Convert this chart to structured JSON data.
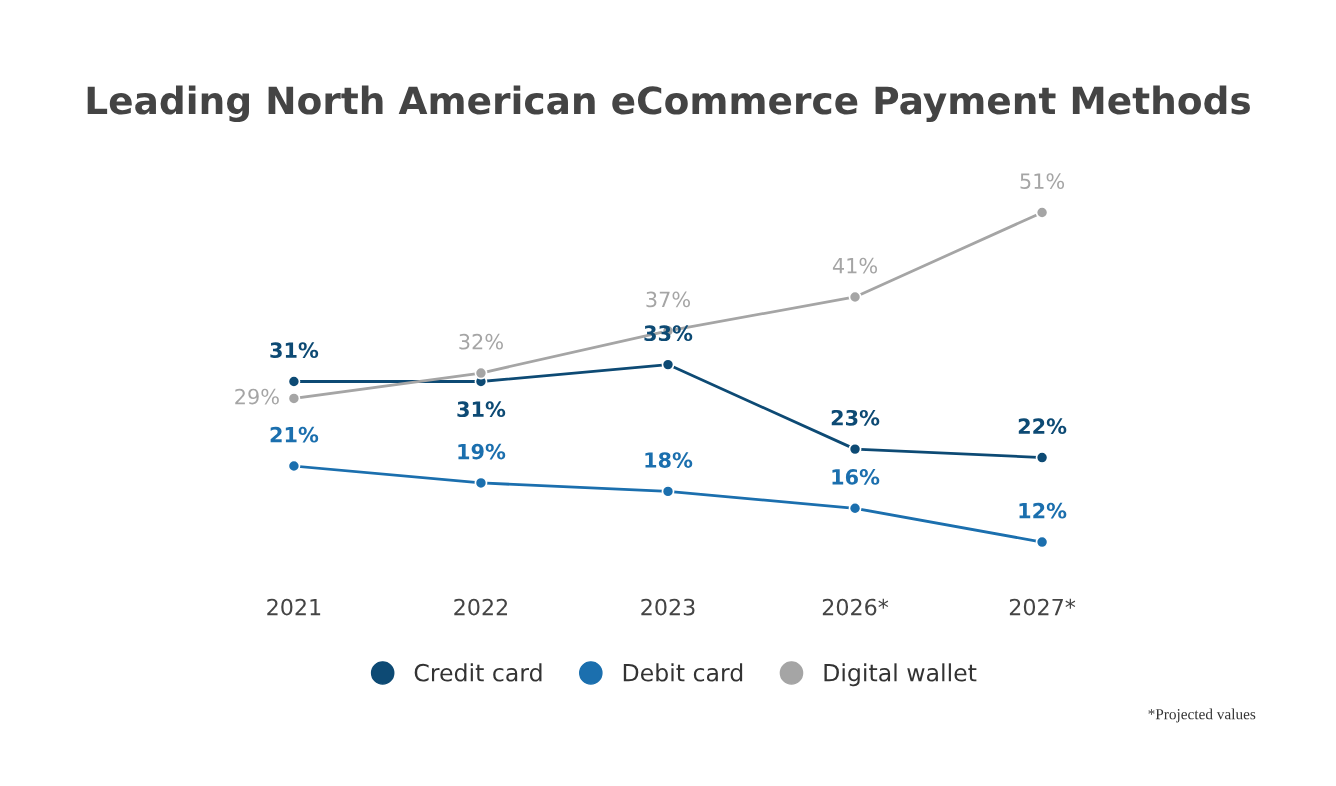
{
  "chart_data": {
    "type": "line",
    "title": "Leading North American eCommerce Payment Methods",
    "categories": [
      "2021",
      "2022",
      "2023",
      "2026*",
      "2027*"
    ],
    "series": [
      {
        "name": "Credit card",
        "color": "#0d4a74",
        "values": [
          31,
          31,
          33,
          23,
          22
        ],
        "value_labels": [
          "31%",
          "31%",
          "33%",
          "23%",
          "22%"
        ]
      },
      {
        "name": "Debit card",
        "color": "#1b6fae",
        "values": [
          21,
          19,
          18,
          16,
          12
        ],
        "value_labels": [
          "21%",
          "19%",
          "18%",
          "16%",
          "12%"
        ]
      },
      {
        "name": "Digital wallet",
        "color": "#a5a5a5",
        "values": [
          29,
          32,
          37,
          41,
          51
        ],
        "value_labels": [
          "29%",
          "32%",
          "37%",
          "41%",
          "51%"
        ]
      }
    ],
    "marker": "circle",
    "legend": "bottom",
    "tick_labels": "x",
    "annotations": [
      "*Projected values"
    ]
  }
}
